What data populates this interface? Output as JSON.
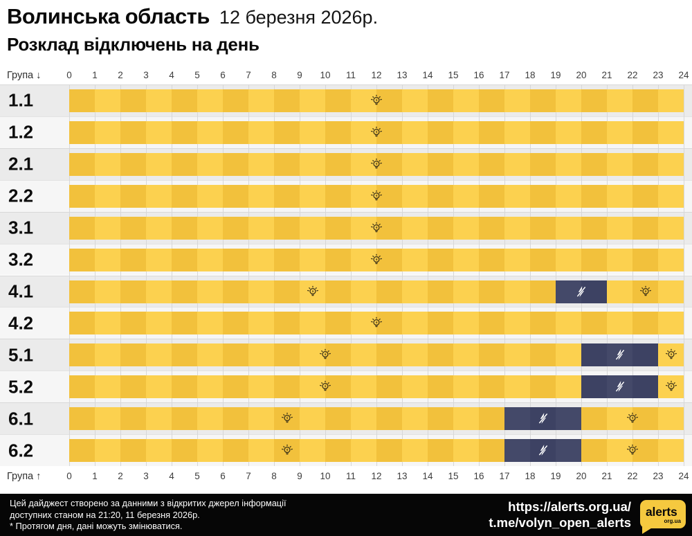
{
  "header": {
    "region": "Волинська область",
    "date": "12 березня 2026р.",
    "subtitle": "Розклад відключень на день"
  },
  "axis": {
    "top_label": "Група ↓",
    "bottom_label": "Група ↑"
  },
  "chart_data": {
    "type": "heatmap",
    "title": "Розклад відключень на день",
    "region": "Волинська область",
    "date": "12 березня 2026р.",
    "x_axis": {
      "min": 0,
      "max": 24,
      "tick_step": 1,
      "ticks": [
        0,
        1,
        2,
        3,
        4,
        5,
        6,
        7,
        8,
        9,
        10,
        11,
        12,
        13,
        14,
        15,
        16,
        17,
        18,
        19,
        20,
        21,
        22,
        23,
        24
      ]
    },
    "rows": [
      {
        "group": "1.1",
        "outages": [],
        "bulb_markers": [
          12
        ],
        "bolt_markers": []
      },
      {
        "group": "1.2",
        "outages": [],
        "bulb_markers": [
          12
        ],
        "bolt_markers": []
      },
      {
        "group": "2.1",
        "outages": [],
        "bulb_markers": [
          12
        ],
        "bolt_markers": []
      },
      {
        "group": "2.2",
        "outages": [],
        "bulb_markers": [
          12
        ],
        "bolt_markers": []
      },
      {
        "group": "3.1",
        "outages": [],
        "bulb_markers": [
          12
        ],
        "bolt_markers": []
      },
      {
        "group": "3.2",
        "outages": [],
        "bulb_markers": [
          12
        ],
        "bolt_markers": []
      },
      {
        "group": "4.1",
        "outages": [
          [
            19,
            21
          ]
        ],
        "bulb_markers": [
          9.5,
          22.5
        ],
        "bolt_markers": [
          20
        ]
      },
      {
        "group": "4.2",
        "outages": [],
        "bulb_markers": [
          12
        ],
        "bolt_markers": []
      },
      {
        "group": "5.1",
        "outages": [
          [
            20,
            23
          ]
        ],
        "bulb_markers": [
          10,
          23.5
        ],
        "bolt_markers": [
          21.5
        ]
      },
      {
        "group": "5.2",
        "outages": [
          [
            20,
            23
          ]
        ],
        "bulb_markers": [
          10,
          23.5
        ],
        "bolt_markers": [
          21.5
        ]
      },
      {
        "group": "6.1",
        "outages": [
          [
            17,
            20
          ]
        ],
        "bulb_markers": [
          8.5,
          22
        ],
        "bolt_markers": [
          18.5
        ]
      },
      {
        "group": "6.2",
        "outages": [
          [
            17,
            20
          ]
        ],
        "bulb_markers": [
          8.5,
          22
        ],
        "bolt_markers": [
          18.5
        ]
      }
    ],
    "colors": {
      "power_on_even": "#F2C13C",
      "power_on_odd": "#FCD14F",
      "power_off_even": "#3D4263",
      "power_off_odd": "#444969",
      "row_bg_even": "#EBEBEB",
      "row_bg_odd": "#F6F6F6",
      "bulb_icon": "#3A3118",
      "bolt_icon": "#FFFFFF"
    }
  },
  "footer": {
    "note_line1": "Цей дайджест створено за данними з відкритих джерел інформації",
    "note_line2": "доступних станом на 21:20, 11 березня 2026р.",
    "note_line3": "* Протягом дня, дані можуть змінюватися.",
    "link_site": "https://alerts.org.ua/",
    "link_telegram": "t.me/volyn_open_alerts",
    "logo_name": "alerts",
    "logo_sub": "org.ua",
    "bg_color": "#060606",
    "logo_color": "#F5C93F"
  }
}
